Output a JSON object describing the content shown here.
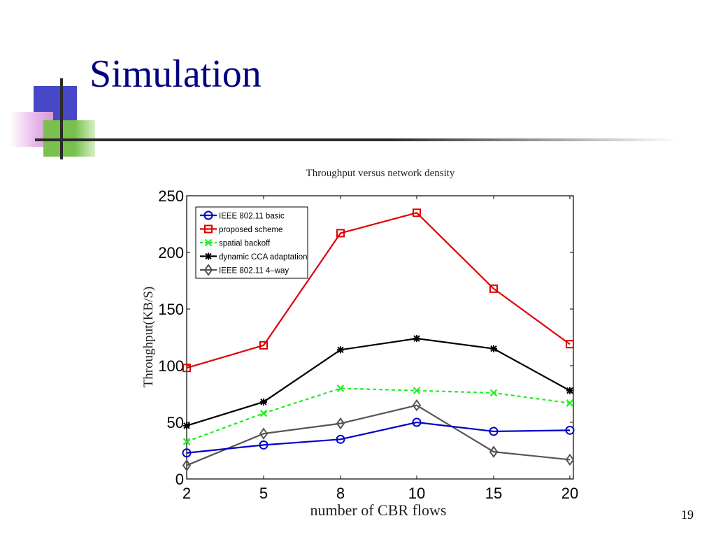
{
  "slide": {
    "title": "Simulation",
    "page_number": "19"
  },
  "chart_data": {
    "type": "line",
    "title": "Throughput versus network density",
    "xlabel": "number of CBR flows",
    "ylabel": "Throughput(KB/S)",
    "categories": [
      "2",
      "5",
      "8",
      "10",
      "15",
      "20"
    ],
    "ylim": [
      0,
      250
    ],
    "yticks": [
      "0",
      "50",
      "100",
      "150",
      "200",
      "250"
    ],
    "grid": false,
    "legend_position": "top-left",
    "series": [
      {
        "name": "IEEE 802.11 basic",
        "values": [
          23,
          30,
          35,
          50,
          42,
          43
        ],
        "color": "#0000cc",
        "marker": "circle",
        "dash": "solid"
      },
      {
        "name": "proposed scheme",
        "values": [
          98,
          118,
          217,
          235,
          168,
          119
        ],
        "color": "#e00000",
        "marker": "square",
        "dash": "solid"
      },
      {
        "name": "spatial backoff",
        "values": [
          33,
          58,
          80,
          78,
          76,
          67
        ],
        "color": "#22ee22",
        "marker": "x",
        "dash": "dashed"
      },
      {
        "name": "dynamic CCA adaptation",
        "values": [
          47,
          68,
          114,
          124,
          115,
          78
        ],
        "color": "#000000",
        "marker": "star",
        "dash": "solid"
      },
      {
        "name": "IEEE 802.11 4–way",
        "values": [
          12,
          40,
          49,
          65,
          24,
          17
        ],
        "color": "#555555",
        "marker": "diamond",
        "dash": "solid"
      }
    ]
  }
}
